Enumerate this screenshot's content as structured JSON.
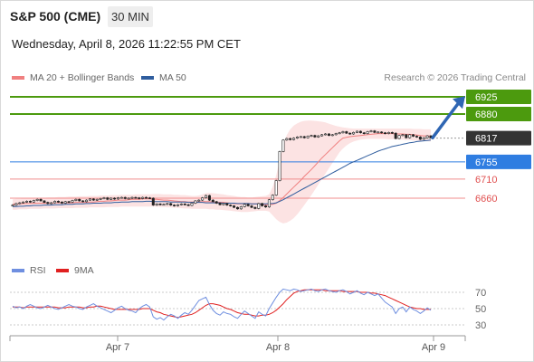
{
  "header": {
    "title": "S&P 500 (CME)",
    "interval": "30 MIN",
    "datetime": "Wednesday, April 8, 2026 11:22:55 PM CET",
    "credit": "Research © 2026 Trading Central"
  },
  "colors": {
    "bollinger": "#f08080",
    "ma50": "#2f5d9e",
    "resistance": "#4c9a0e",
    "support": "#f08c8c",
    "pivot": "#2f7de1",
    "current": "#333333",
    "arrow": "#2f66b3",
    "rsi": "#6f8fe0",
    "rsi_ma": "#e02020"
  },
  "chart_data": [
    {
      "type": "candlestick",
      "legend": [
        {
          "label": "MA 20 + Bollinger Bands",
          "color": "#f08080"
        },
        {
          "label": "MA 50",
          "color": "#2f5d9e"
        }
      ],
      "x_ticks": [
        "Apr 7",
        "Apr 8",
        "Apr 9"
      ],
      "ylim": [
        6620,
        6940
      ],
      "levels": [
        {
          "value": 6925,
          "label": "6925",
          "kind": "resistance"
        },
        {
          "value": 6880,
          "label": "6880",
          "kind": "resistance"
        },
        {
          "value": 6817,
          "label": "6817",
          "kind": "current"
        },
        {
          "value": 6755,
          "label": "6755",
          "kind": "pivot"
        },
        {
          "value": 6710,
          "label": "6710",
          "kind": "support"
        },
        {
          "value": 6660,
          "label": "6660",
          "kind": "support"
        }
      ],
      "forecast_arrow": {
        "from": 6818,
        "to": 6922
      },
      "close": [
        6642,
        6646,
        6648,
        6650,
        6652,
        6650,
        6654,
        6657,
        6653,
        6649,
        6646,
        6648,
        6652,
        6650,
        6647,
        6651,
        6650,
        6654,
        6657,
        6653,
        6651,
        6655,
        6658,
        6655,
        6657,
        6659,
        6661,
        6657,
        6660,
        6658,
        6661,
        6662,
        6659,
        6660,
        6662,
        6661,
        6659,
        6662,
        6661,
        6660,
        6642,
        6645,
        6643,
        6644,
        6646,
        6642,
        6640,
        6643,
        6645,
        6643,
        6641,
        6647,
        6653,
        6655,
        6661,
        6667,
        6655,
        6651,
        6647,
        6643,
        6646,
        6642,
        6640,
        6636,
        6632,
        6638,
        6644,
        6640,
        6636,
        6633,
        6646,
        6640,
        6637,
        6656,
        6668,
        6706,
        6782,
        6812,
        6816,
        6813,
        6817,
        6820,
        6821,
        6818,
        6822,
        6824,
        6820,
        6823,
        6826,
        6828,
        6824,
        6826,
        6829,
        6831,
        6834,
        6830,
        6828,
        6832,
        6835,
        6831,
        6829,
        6834,
        6836,
        6832,
        6833,
        6831,
        6829,
        6832,
        6830,
        6816,
        6824,
        6826,
        6818,
        6826,
        6822,
        6820,
        6814,
        6818,
        6823,
        6818
      ],
      "ma20": [
        6644,
        6645,
        6645,
        6646,
        6646,
        6646,
        6647,
        6647,
        6647,
        6647,
        6647,
        6647,
        6648,
        6648,
        6648,
        6648,
        6648,
        6648,
        6649,
        6649,
        6649,
        6649,
        6650,
        6650,
        6651,
        6652,
        6652,
        6653,
        6653,
        6654,
        6655,
        6655,
        6655,
        6656,
        6657,
        6657,
        6657,
        6658,
        6658,
        6658,
        6657,
        6657,
        6656,
        6655,
        6655,
        6654,
        6653,
        6652,
        6651,
        6651,
        6650,
        6650,
        6650,
        6650,
        6651,
        6651,
        6651,
        6650,
        6650,
        6649,
        6649,
        6648,
        6647,
        6646,
        6645,
        6645,
        6646,
        6646,
        6645,
        6645,
        6645,
        6644,
        6643,
        6643,
        6644,
        6647,
        6654,
        6662,
        6671,
        6680,
        6689,
        6698,
        6707,
        6717,
        6726,
        6735,
        6745,
        6755,
        6765,
        6774,
        6783,
        6792,
        6801,
        6810,
        6817,
        6819,
        6821,
        6822,
        6823,
        6824,
        6825,
        6826,
        6827,
        6828,
        6829,
        6829,
        6829,
        6829,
        6829,
        6828,
        6828,
        6828,
        6827,
        6827,
        6826,
        6825,
        6824,
        6823,
        6823,
        6822
      ],
      "ma50": [
        6638,
        6638,
        6639,
        6639,
        6640,
        6640,
        6641,
        6641,
        6641,
        6642,
        6642,
        6642,
        6643,
        6643,
        6643,
        6644,
        6644,
        6644,
        6645,
        6645,
        6645,
        6646,
        6646,
        6647,
        6647,
        6647,
        6648,
        6648,
        6648,
        6649,
        6649,
        6650,
        6650,
        6650,
        6651,
        6651,
        6651,
        6651,
        6652,
        6652,
        6651,
        6651,
        6651,
        6651,
        6651,
        6650,
        6650,
        6650,
        6650,
        6650,
        6649,
        6649,
        6649,
        6649,
        6649,
        6648,
        6648,
        6648,
        6648,
        6648,
        6647,
        6647,
        6647,
        6647,
        6646,
        6646,
        6646,
        6646,
        6645,
        6645,
        6645,
        6645,
        6645,
        6646,
        6646,
        6648,
        6652,
        6656,
        6661,
        6666,
        6671,
        6676,
        6681,
        6686,
        6691,
        6696,
        6701,
        6706,
        6711,
        6716,
        6721,
        6726,
        6731,
        6736,
        6741,
        6746,
        6751,
        6755,
        6759,
        6763,
        6767,
        6771,
        6775,
        6779,
        6783,
        6786,
        6789,
        6792,
        6795,
        6797,
        6799,
        6801,
        6803,
        6805,
        6806,
        6808,
        6809,
        6810,
        6811,
        6812
      ],
      "bb_upper": [
        6657,
        6658,
        6658,
        6659,
        6659,
        6660,
        6660,
        6661,
        6661,
        6661,
        6662,
        6662,
        6662,
        6663,
        6663,
        6663,
        6664,
        6664,
        6664,
        6665,
        6665,
        6665,
        6666,
        6666,
        6666,
        6667,
        6667,
        6667,
        6668,
        6668,
        6668,
        6669,
        6669,
        6669,
        6669,
        6670,
        6670,
        6670,
        6670,
        6670,
        6671,
        6671,
        6671,
        6670,
        6670,
        6670,
        6669,
        6669,
        6668,
        6668,
        6667,
        6666,
        6666,
        6667,
        6670,
        6673,
        6674,
        6673,
        6672,
        6671,
        6670,
        6668,
        6667,
        6666,
        6664,
        6663,
        6663,
        6662,
        6662,
        6663,
        6664,
        6665,
        6666,
        6670,
        6690,
        6720,
        6760,
        6800,
        6825,
        6840,
        6850,
        6856,
        6860,
        6862,
        6863,
        6863,
        6862,
        6861,
        6860,
        6858,
        6855,
        6852,
        6849,
        6847,
        6845,
        6844,
        6843,
        6842,
        6842,
        6842,
        6842,
        6842,
        6842,
        6842,
        6842,
        6842,
        6842,
        6842,
        6842,
        6842,
        6842,
        6842,
        6842,
        6842,
        6841,
        6841,
        6841,
        6840,
        6840,
        6840
      ],
      "bb_lower": [
        6630,
        6630,
        6631,
        6631,
        6631,
        6632,
        6632,
        6632,
        6632,
        6633,
        6633,
        6633,
        6633,
        6634,
        6634,
        6634,
        6634,
        6634,
        6635,
        6635,
        6635,
        6635,
        6636,
        6636,
        6636,
        6636,
        6636,
        6637,
        6637,
        6637,
        6637,
        6638,
        6638,
        6638,
        6638,
        6638,
        6638,
        6638,
        6638,
        6638,
        6638,
        6638,
        6637,
        6637,
        6636,
        6636,
        6635,
        6635,
        6634,
        6633,
        6633,
        6632,
        6632,
        6632,
        6632,
        6632,
        6631,
        6631,
        6630,
        6630,
        6629,
        6628,
        6627,
        6626,
        6625,
        6624,
        6624,
        6624,
        6625,
        6626,
        6627,
        6627,
        6627,
        6625,
        6615,
        6605,
        6598,
        6594,
        6596,
        6601,
        6608,
        6618,
        6630,
        6642,
        6655,
        6668,
        6682,
        6696,
        6710,
        6724,
        6738,
        6752,
        6766,
        6780,
        6790,
        6798,
        6804,
        6808,
        6811,
        6813,
        6814,
        6815,
        6815,
        6815,
        6815,
        6815,
        6815,
        6814,
        6814,
        6814,
        6813,
        6813,
        6812,
        6812,
        6811,
        6811,
        6810,
        6810,
        6809,
        6808
      ]
    },
    {
      "type": "line",
      "legend": [
        {
          "label": "RSI",
          "color": "#6f8fe0"
        },
        {
          "label": "9MA",
          "color": "#e02020"
        }
      ],
      "y_ticks": [
        "70",
        "50",
        "30"
      ],
      "ylim": [
        20,
        80
      ],
      "rsi": [
        53,
        51,
        52,
        50,
        53,
        55,
        53,
        51,
        50,
        52,
        54,
        52,
        50,
        49,
        51,
        53,
        55,
        53,
        52,
        50,
        49,
        52,
        54,
        56,
        53,
        51,
        49,
        47,
        45,
        48,
        51,
        53,
        50,
        48,
        47,
        45,
        50,
        53,
        55,
        52,
        40,
        37,
        39,
        36,
        40,
        43,
        41,
        38,
        42,
        45,
        43,
        48,
        54,
        60,
        62,
        64,
        55,
        48,
        44,
        42,
        46,
        44,
        43,
        40,
        38,
        43,
        47,
        44,
        41,
        38,
        46,
        43,
        41,
        50,
        57,
        64,
        70,
        74,
        73,
        72,
        74,
        73,
        71,
        72,
        73,
        74,
        72,
        71,
        73,
        74,
        72,
        71,
        70,
        72,
        73,
        71,
        68,
        70,
        72,
        69,
        67,
        70,
        68,
        66,
        68,
        63,
        58,
        55,
        52,
        44,
        50,
        52,
        46,
        52,
        49,
        47,
        44,
        47,
        51,
        48
      ],
      "rsi_ma": [
        52,
        52,
        52,
        51,
        52,
        52,
        52,
        52,
        52,
        52,
        52,
        52,
        52,
        51,
        51,
        51,
        52,
        52,
        52,
        52,
        51,
        51,
        52,
        52,
        53,
        53,
        52,
        51,
        50,
        49,
        49,
        49,
        49,
        49,
        49,
        49,
        49,
        50,
        50,
        50,
        48,
        46,
        45,
        43,
        42,
        41,
        40,
        39,
        40,
        41,
        42,
        43,
        45,
        48,
        51,
        54,
        56,
        56,
        55,
        54,
        52,
        50,
        49,
        47,
        45,
        44,
        43,
        43,
        42,
        41,
        41,
        42,
        42,
        43,
        45,
        48,
        52,
        56,
        61,
        65,
        69,
        71,
        72,
        73,
        73,
        73,
        73,
        73,
        73,
        72,
        72,
        72,
        72,
        72,
        71,
        71,
        71,
        71,
        71,
        70,
        70,
        70,
        69,
        69,
        68,
        67,
        66,
        64,
        62,
        60,
        58,
        56,
        54,
        52,
        51,
        50,
        50,
        49,
        49,
        49
      ]
    }
  ]
}
